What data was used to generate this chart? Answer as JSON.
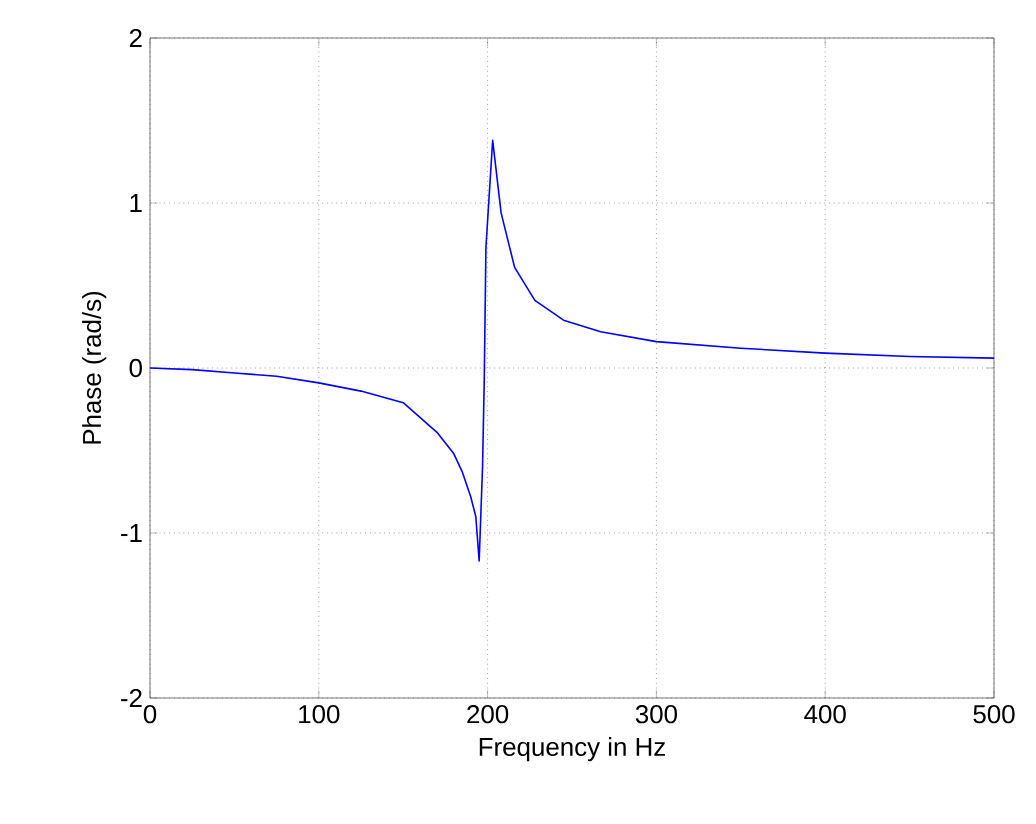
{
  "chart_data": {
    "type": "line",
    "xlabel": "Frequency in Hz",
    "ylabel": "Phase (rad/s)",
    "xlim": [
      0,
      500
    ],
    "ylim": [
      -2,
      2
    ],
    "xticks": [
      0,
      100,
      200,
      300,
      400,
      500
    ],
    "yticks": [
      -2,
      -1,
      0,
      1,
      2
    ],
    "grid": true,
    "line_style": "solid",
    "marker": "none",
    "series": [
      {
        "color": "#0000ff",
        "x": [
          0,
          25,
          50,
          75,
          100,
          125,
          150,
          170,
          180,
          185,
          190,
          193,
          195,
          197,
          198,
          199,
          203,
          208,
          216,
          228,
          245,
          267,
          300,
          350,
          400,
          450,
          500
        ],
        "values": [
          0,
          -0.01,
          -0.03,
          -0.05,
          -0.09,
          -0.14,
          -0.21,
          -0.39,
          -0.52,
          -0.63,
          -0.78,
          -0.9,
          -1.17,
          -0.6,
          -0.08,
          0.73,
          1.38,
          0.94,
          0.61,
          0.41,
          0.29,
          0.22,
          0.16,
          0.12,
          0.09,
          0.07,
          0.06
        ]
      }
    ]
  }
}
